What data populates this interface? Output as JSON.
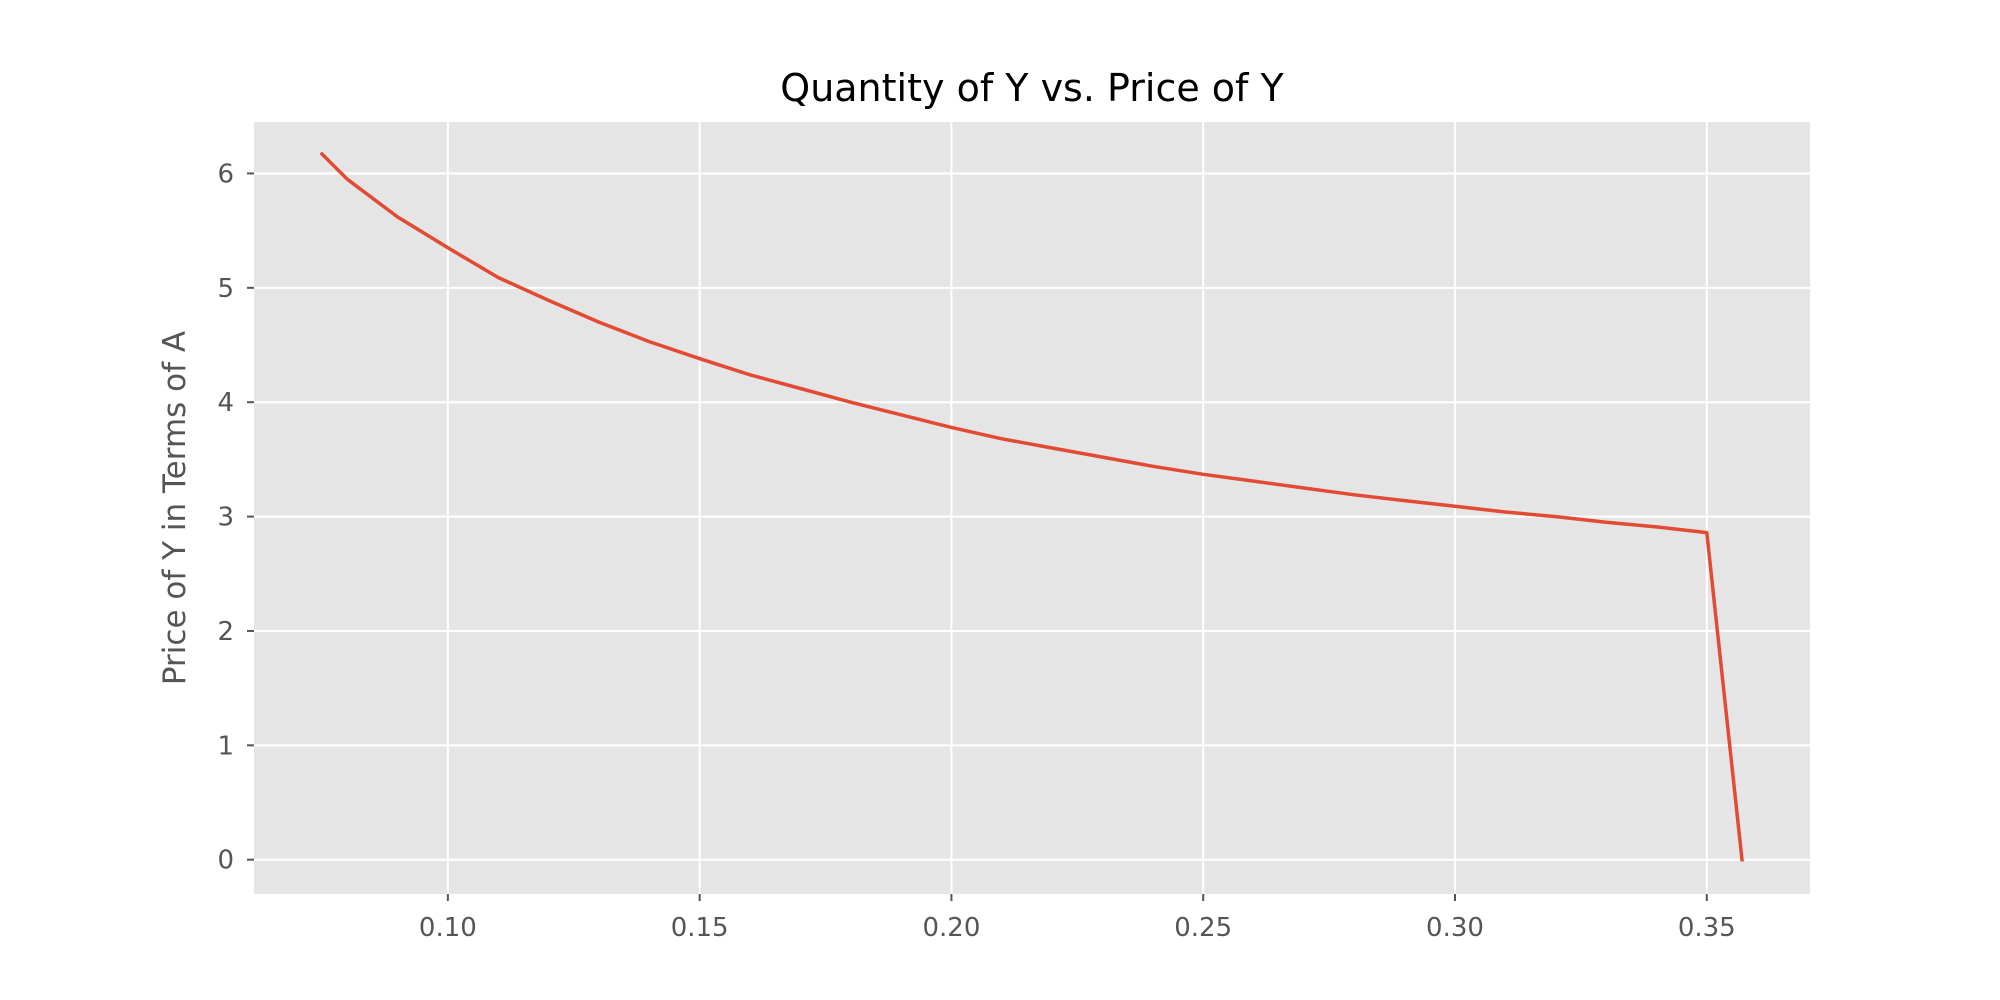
{
  "chart_data": {
    "type": "line",
    "title": "Quantity of Y vs. Price of Y",
    "xlabel": "",
    "ylabel": "Price of Y in Terms of A",
    "xlim": [
      0.0615,
      0.3705
    ],
    "ylim": [
      -0.3,
      6.45
    ],
    "xticks": [
      0.1,
      0.15,
      0.2,
      0.25,
      0.3,
      0.35
    ],
    "xtick_labels": [
      "0.10",
      "0.15",
      "0.20",
      "0.25",
      "0.30",
      "0.35"
    ],
    "yticks": [
      0,
      1,
      2,
      3,
      4,
      5,
      6
    ],
    "ytick_labels": [
      "0",
      "1",
      "2",
      "3",
      "4",
      "5",
      "6"
    ],
    "grid": true,
    "legend": "none",
    "colors": {
      "plot_background": "#e5e5e5",
      "grid": "#ffffff",
      "line": "#e24a33"
    },
    "series": [
      {
        "x": [
          0.075,
          0.08,
          0.09,
          0.1,
          0.11,
          0.12,
          0.13,
          0.14,
          0.15,
          0.16,
          0.17,
          0.18,
          0.19,
          0.2,
          0.21,
          0.22,
          0.23,
          0.24,
          0.25,
          0.26,
          0.27,
          0.28,
          0.29,
          0.3,
          0.31,
          0.32,
          0.33,
          0.34,
          0.35,
          0.357
        ],
        "values": [
          6.17,
          5.95,
          5.62,
          5.35,
          5.09,
          4.89,
          4.7,
          4.53,
          4.38,
          4.24,
          4.12,
          4.0,
          3.89,
          3.78,
          3.68,
          3.6,
          3.52,
          3.44,
          3.37,
          3.31,
          3.25,
          3.19,
          3.14,
          3.09,
          3.04,
          3.0,
          2.95,
          2.91,
          2.86,
          0.0
        ]
      }
    ]
  }
}
